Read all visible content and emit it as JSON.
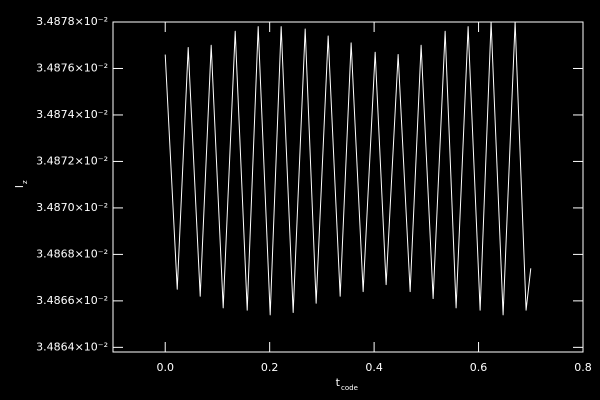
{
  "chart_data": {
    "type": "line",
    "xlabel": "t",
    "xlabel_sub": "code",
    "ylabel": "l",
    "ylabel_sub": "z",
    "color": "#ffffff",
    "x": [
      0.0,
      0.023,
      0.044,
      0.067,
      0.088,
      0.111,
      0.134,
      0.157,
      0.178,
      0.201,
      0.222,
      0.245,
      0.268,
      0.289,
      0.312,
      0.335,
      0.356,
      0.379,
      0.402,
      0.423,
      0.446,
      0.469,
      0.49,
      0.513,
      0.536,
      0.557,
      0.58,
      0.603,
      0.624,
      0.647,
      0.67,
      0.691,
      0.7
    ],
    "values": [
      0.0348766,
      0.0348665,
      0.0348769,
      0.0348662,
      0.034877,
      0.0348657,
      0.0348776,
      0.0348656,
      0.0348778,
      0.0348654,
      0.0348778,
      0.0348655,
      0.0348777,
      0.0348659,
      0.0348774,
      0.0348662,
      0.0348771,
      0.0348664,
      0.0348767,
      0.0348667,
      0.0348766,
      0.0348664,
      0.034877,
      0.0348661,
      0.0348776,
      0.0348657,
      0.0348778,
      0.0348656,
      0.034878,
      0.0348654,
      0.034878,
      0.0348656,
      0.0348674
    ],
    "xlim": [
      -0.1,
      0.8
    ],
    "xticks": [
      {
        "value": 0,
        "label": "0.0"
      },
      0.2,
      0.4,
      0.6,
      0.8
    ],
    "ylim": [
      0.0348638,
      0.034878
    ],
    "yticks": [
      {
        "value": 0.034864,
        "label": "3.4864×10⁻²"
      },
      {
        "value": 0.034866,
        "label": "3.4866×10⁻²"
      },
      {
        "value": 0.034868,
        "label": "3.4868×10⁻²"
      },
      {
        "value": 0.03487,
        "label": "3.4870×10⁻²"
      },
      {
        "value": 0.034872,
        "label": "3.4872×10⁻²"
      },
      {
        "value": 0.034874,
        "label": "3.4874×10⁻²"
      },
      {
        "value": 0.034876,
        "label": "3.4876×10⁻²"
      },
      {
        "value": 0.034878,
        "label": "3.4878×10⁻²"
      }
    ]
  }
}
